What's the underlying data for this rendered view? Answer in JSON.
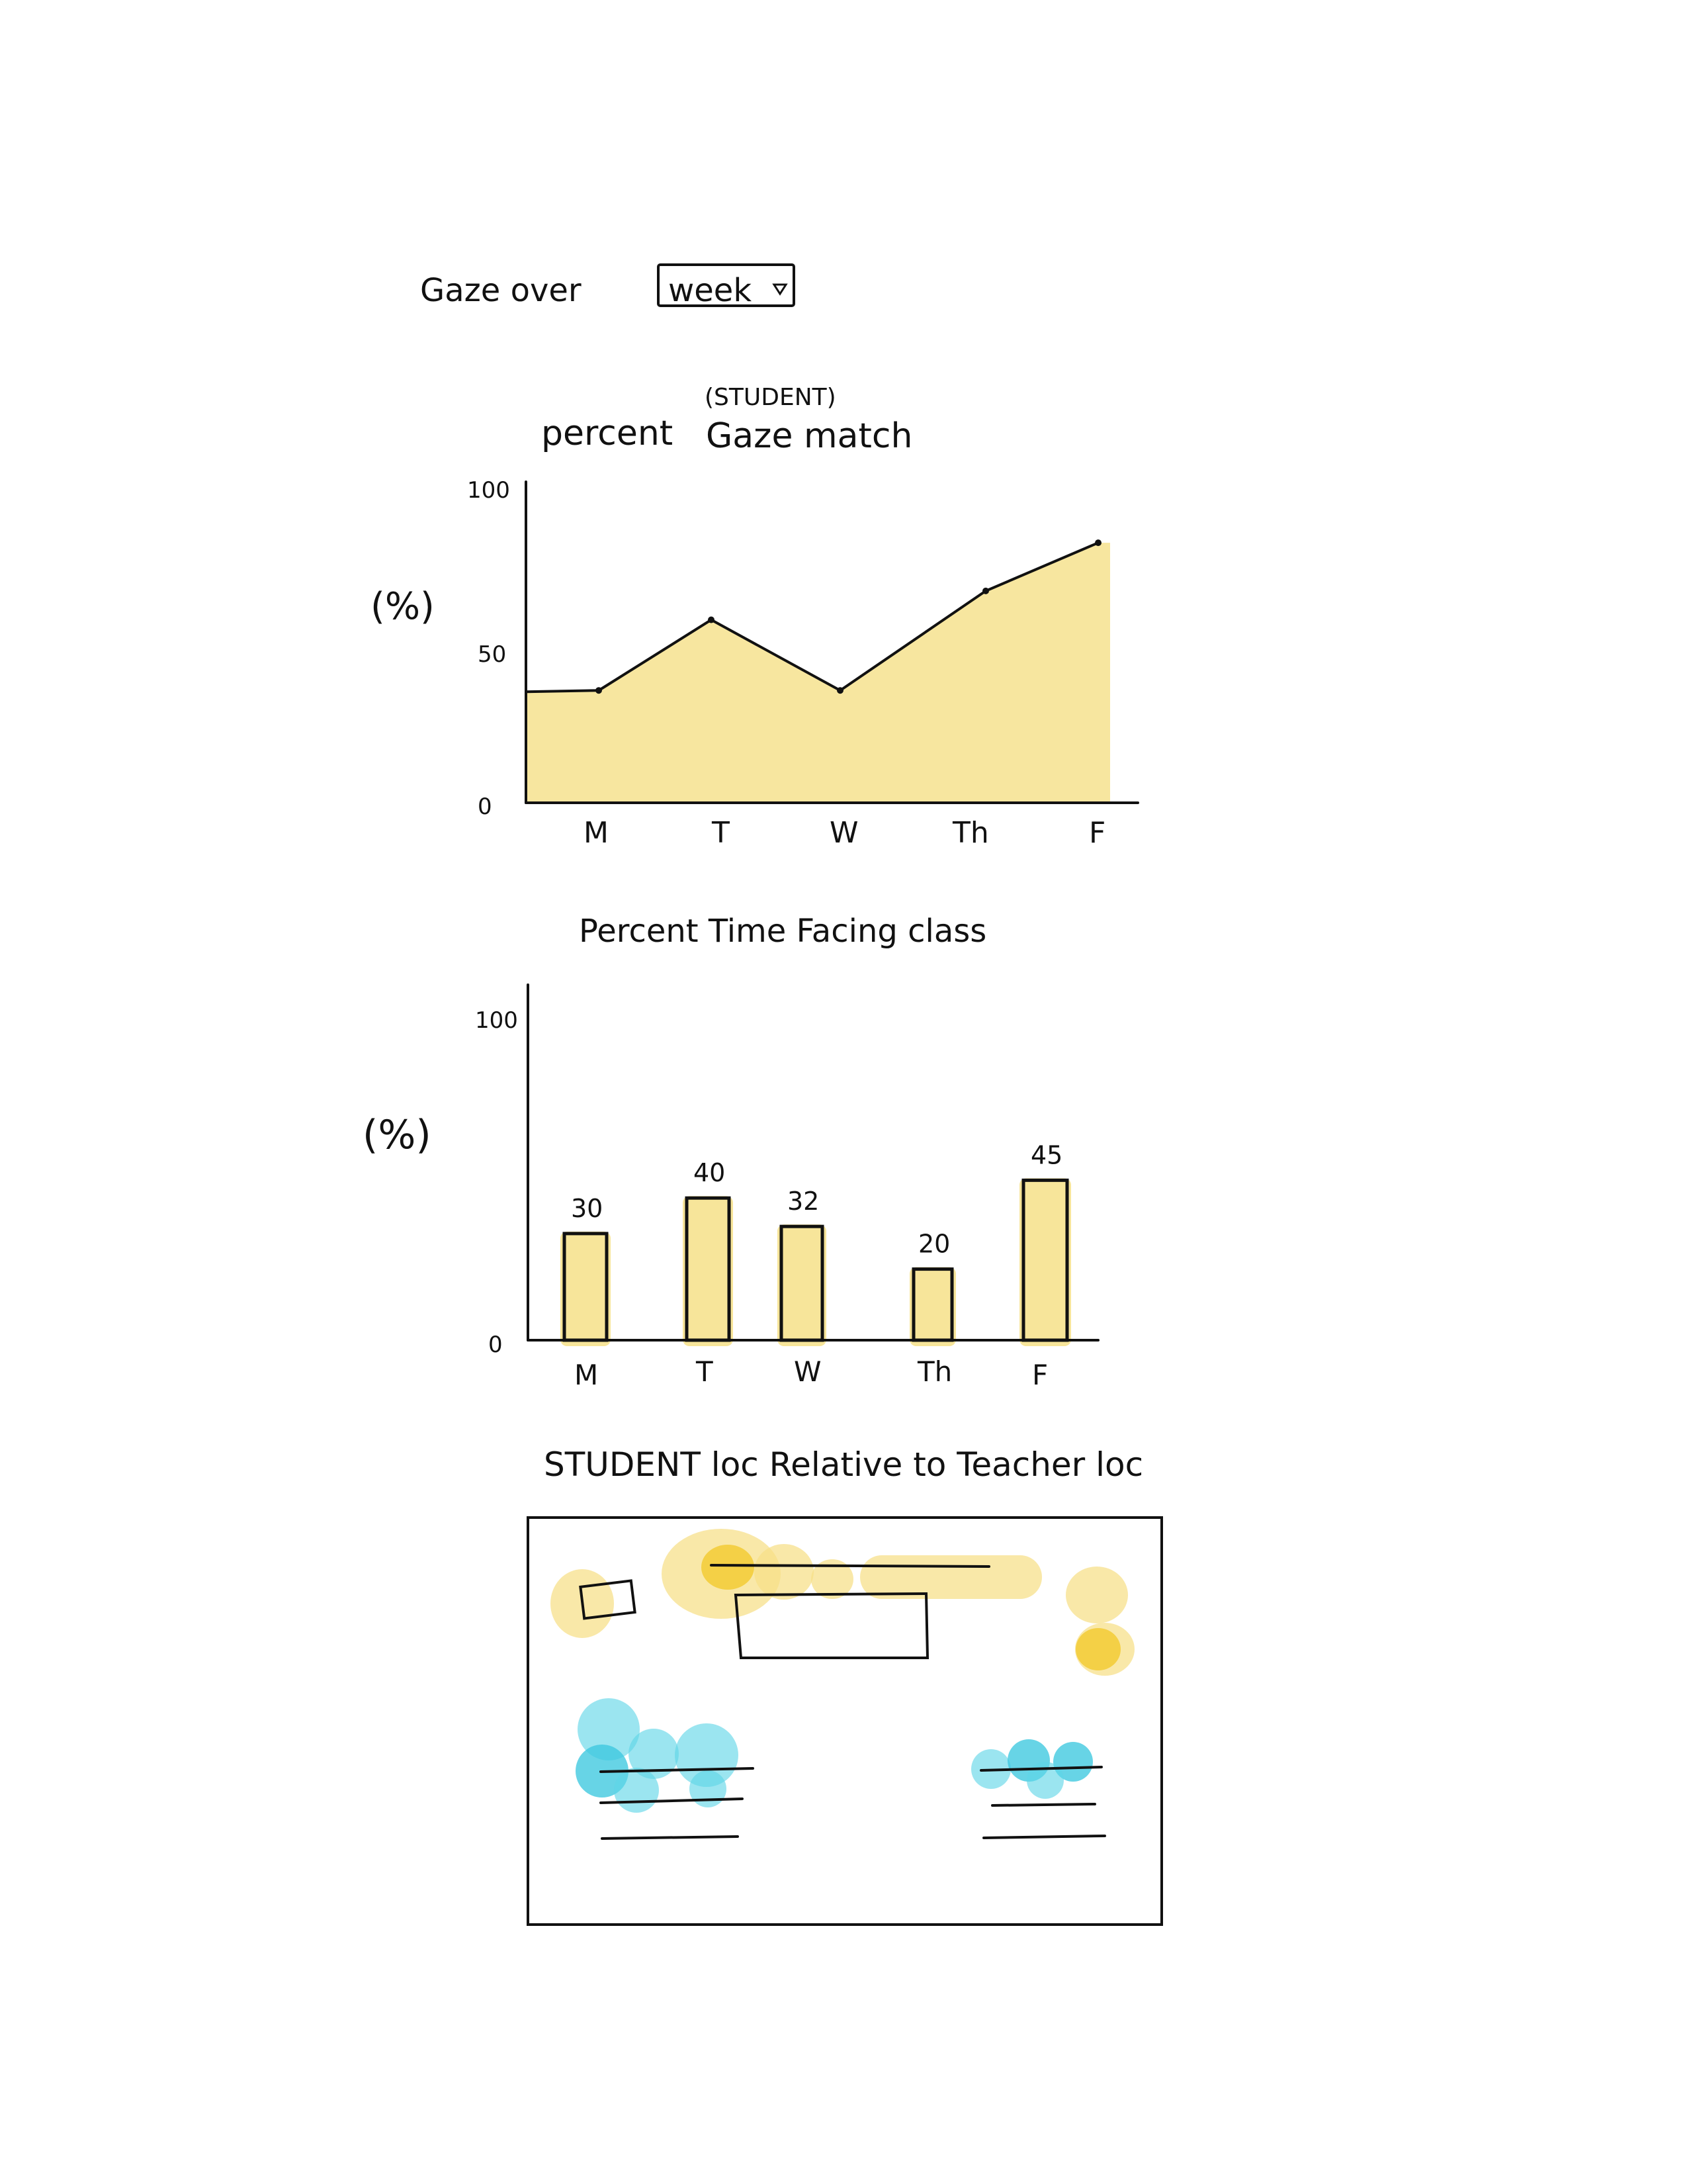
{
  "header": {
    "label": "Gaze over",
    "timeframe": {
      "selected": "week"
    }
  },
  "charts": {
    "gaze_match": {
      "title_prefix": "percent",
      "title_note": "(STUDENT)",
      "title_main": "Gaze match",
      "ylabel": "(%)",
      "y_ticks": [
        "100",
        "50",
        "0"
      ],
      "x_ticks": [
        "M",
        "T",
        "W",
        "Th",
        "F"
      ]
    },
    "facing_class": {
      "title": "Percent Time Facing class",
      "ylabel": "(%)",
      "y_ticks": [
        "100",
        "0"
      ],
      "x_ticks": [
        "M",
        "T",
        "W",
        "Th",
        "F"
      ],
      "labels": [
        "30",
        "40",
        "32",
        "20",
        "45"
      ]
    },
    "location": {
      "title": "STUDENT loc Relative to Teacher loc"
    }
  },
  "chart_data": [
    {
      "type": "area",
      "title": "percent (STUDENT) Gaze match",
      "xlabel": "",
      "ylabel": "(%)",
      "x": [
        "M",
        "T",
        "W",
        "Th",
        "F"
      ],
      "values": [
        35,
        57,
        35,
        66,
        81
      ],
      "ylim": [
        0,
        100
      ],
      "y_ticks": [
        0,
        50,
        100
      ],
      "grid": false,
      "color": "#f7e59a"
    },
    {
      "type": "bar",
      "title": "Percent Time Facing class",
      "xlabel": "",
      "ylabel": "(%)",
      "categories": [
        "M",
        "T",
        "W",
        "Th",
        "F"
      ],
      "values": [
        30,
        40,
        32,
        20,
        45
      ],
      "ylim": [
        0,
        100
      ],
      "y_ticks": [
        0,
        100
      ],
      "grid": false,
      "color": "#f7e59a"
    },
    {
      "type": "heatmap",
      "title": "STUDENT loc Relative to Teacher loc",
      "xlabel": "",
      "ylabel": "",
      "legend": "none",
      "colors": {
        "teacher_area": "#f7df86",
        "student_area": "#5dd5e6"
      }
    }
  ]
}
